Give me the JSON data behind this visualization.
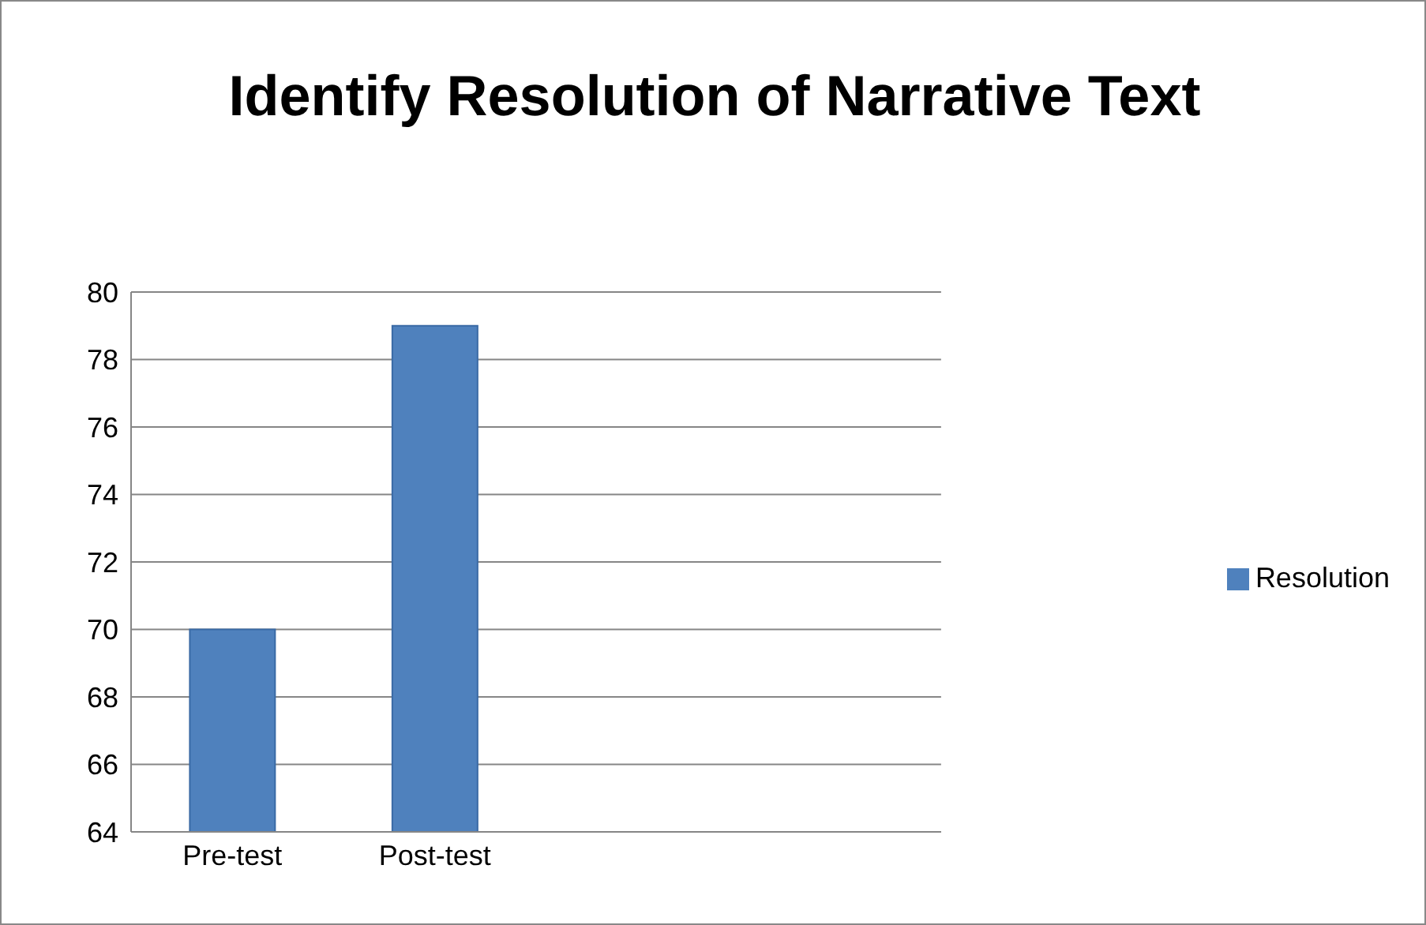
{
  "chart_data": {
    "type": "bar",
    "title": "Identify Resolution of Narrative Text",
    "categories": [
      "Pre-test",
      "Post-test",
      null,
      null
    ],
    "series": [
      {
        "name": "Resolution",
        "color": "#4f81bd",
        "values": [
          70,
          79,
          null,
          null
        ]
      }
    ],
    "ylim": [
      64,
      80
    ],
    "yticks": [
      64,
      66,
      68,
      70,
      72,
      74,
      76,
      78,
      80
    ],
    "grid": "y",
    "legend": "right"
  }
}
